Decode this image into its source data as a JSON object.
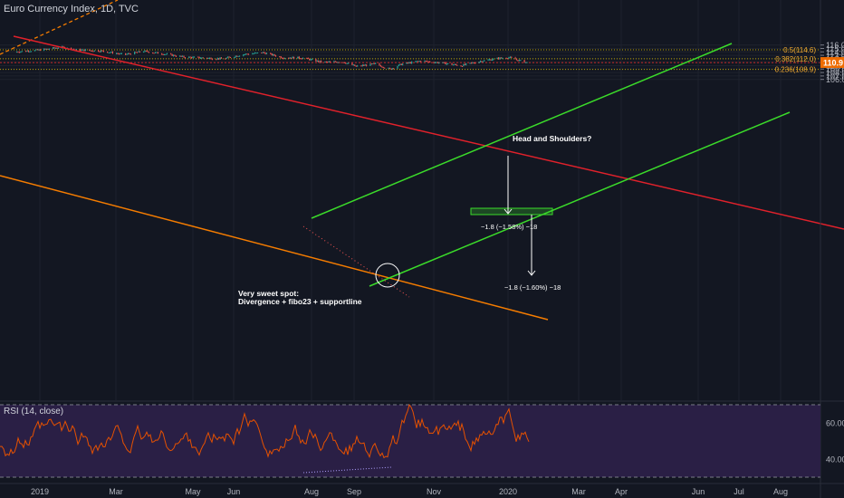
{
  "title": "Euro Currency Index, 1D, TVC",
  "rsi_title": "RSI (14, close)",
  "colors": {
    "bg": "#131722",
    "grid": "#1e222d",
    "up": "#26a69a",
    "down": "#ef5350",
    "red_channel": "#e0212b",
    "orange_support": "#f57c00",
    "green_channel": "#3bdb2a",
    "fib_line": "#b8a000",
    "fib_label": "#f0a830",
    "current_price_line": "#c62828",
    "current_price_badge": "#ef6c00",
    "rsi_bg": "#2a1f45",
    "rsi_line": "#e65100",
    "text": "#d1d4dc"
  },
  "chart_data": {
    "type": "candlestick",
    "title": "Euro Currency Index, 1D, TVC",
    "x_tick_labels": [
      "2019",
      "Mar",
      "May",
      "Jun",
      "Aug",
      "Sep",
      "Nov",
      "2020",
      "Mar",
      "Apr",
      "Jun",
      "Jul",
      "Aug"
    ],
    "y_tick_labels": [
      "106.0",
      "107.0",
      "108.0",
      "109.0",
      "110.0",
      "111.0",
      "112.0",
      "113.0",
      "114.0",
      "115.0",
      "116.0"
    ],
    "ylim": [
      105.5,
      116.4
    ],
    "current_price": "110.9",
    "close_path": [
      {
        "d": "2018-12-15",
        "p": 114.0
      },
      {
        "d": "2019-01-05",
        "p": 114.6
      },
      {
        "d": "2019-01-20",
        "p": 115.4
      },
      {
        "d": "2019-02-01",
        "p": 114.6
      },
      {
        "d": "2019-02-20",
        "p": 114.3
      },
      {
        "d": "2019-03-10",
        "p": 113.2
      },
      {
        "d": "2019-03-25",
        "p": 114.2
      },
      {
        "d": "2019-04-10",
        "p": 113.4
      },
      {
        "d": "2019-04-25",
        "p": 112.5
      },
      {
        "d": "2019-05-10",
        "p": 112.3
      },
      {
        "d": "2019-05-25",
        "p": 112.0
      },
      {
        "d": "2019-06-10",
        "p": 113.3
      },
      {
        "d": "2019-06-25",
        "p": 113.8
      },
      {
        "d": "2019-07-10",
        "p": 112.4
      },
      {
        "d": "2019-07-25",
        "p": 112.3
      },
      {
        "d": "2019-08-10",
        "p": 111.0
      },
      {
        "d": "2019-08-25",
        "p": 111.2
      },
      {
        "d": "2019-09-05",
        "p": 109.8
      },
      {
        "d": "2019-09-20",
        "p": 110.5
      },
      {
        "d": "2019-10-01",
        "p": 109.0
      },
      {
        "d": "2019-10-10",
        "p": 110.4
      },
      {
        "d": "2019-10-25",
        "p": 111.4
      },
      {
        "d": "2019-11-10",
        "p": 110.8
      },
      {
        "d": "2019-11-25",
        "p": 110.0
      },
      {
        "d": "2019-12-10",
        "p": 111.3
      },
      {
        "d": "2019-12-25",
        "p": 112.2
      },
      {
        "d": "2020-01-01",
        "p": 112.4
      },
      {
        "d": "2020-01-08",
        "p": 111.6
      },
      {
        "d": "2020-01-15",
        "p": 110.9
      }
    ],
    "rsi_levels": [
      "60.00",
      "40.00"
    ]
  },
  "fibs": [
    {
      "label": "0.5(114.6)",
      "level": 114.6
    },
    {
      "label": "0.382(112.0)",
      "level": 112.0
    },
    {
      "label": "0.236(108.9)",
      "level": 108.9
    }
  ],
  "annotations": {
    "head_shoulders": "Head and Shoulders?",
    "sweet_spot_line1": "Very sweet spot:",
    "sweet_spot_line2": "Divergence + fibo23 + supportline",
    "measure1": "−1.8 (−1.58%) −18",
    "measure2": "−1.8 (−1.60%) −18"
  }
}
